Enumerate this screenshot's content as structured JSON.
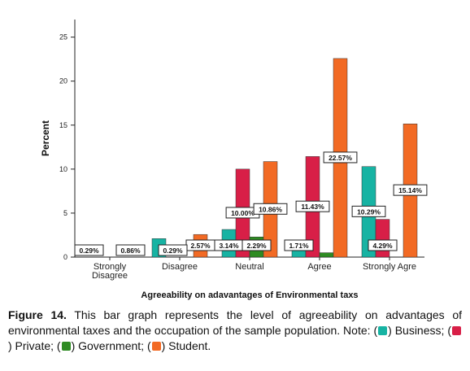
{
  "chart_data": {
    "type": "bar",
    "ylabel": "Percent",
    "xlabel": "Agreeability on adavantages of Environmental taxs",
    "ylim": [
      0,
      27
    ],
    "yticks": [
      0,
      5,
      10,
      15,
      20,
      25
    ],
    "grid": false,
    "categories": [
      [
        "Strongly",
        "Disagree"
      ],
      [
        "Disagree"
      ],
      [
        "Neutral"
      ],
      [
        "Agree"
      ],
      [
        "Strongly Agre"
      ]
    ],
    "series": [
      {
        "name": "Business",
        "color": "#17b3a3",
        "values": [
          null,
          2.1,
          3.14,
          1.71,
          10.29
        ],
        "labels": [
          "",
          "",
          "3.14%",
          "1.71%",
          "10.29%"
        ]
      },
      {
        "name": "Private",
        "color": "#d81f47",
        "values": [
          null,
          null,
          10.0,
          11.43,
          4.29
        ],
        "labels": [
          "",
          "",
          "10.00%",
          "11.43%",
          "4.29%"
        ]
      },
      {
        "name": "Government",
        "color": "#2e8b22",
        "values": [
          null,
          null,
          2.29,
          0.5,
          null
        ],
        "labels": [
          "",
          "",
          "2.29%",
          "",
          ""
        ]
      },
      {
        "name": "Student",
        "color": "#f26a24",
        "values": [
          null,
          2.57,
          10.86,
          22.57,
          15.14
        ],
        "labels": [
          "",
          "2.57%",
          "10.86%",
          "22.57%",
          "15.14%"
        ]
      }
    ],
    "extra_labels": [
      {
        "category": 0,
        "series": 0,
        "text": "0.29%"
      },
      {
        "category": 0,
        "series": 3,
        "text": "0.86%"
      },
      {
        "category": 1,
        "series": 1,
        "text": "0.29%"
      }
    ]
  },
  "caption": {
    "figure_label": "Figure 14.",
    "text": " This bar graph represents the level of agreeability on advantages of environmental taxes and the occupation of the sample population. Note: (",
    "business": ") Business; (",
    "private": ") Private; (",
    "government": ") Government; (",
    "student": ") Student."
  }
}
